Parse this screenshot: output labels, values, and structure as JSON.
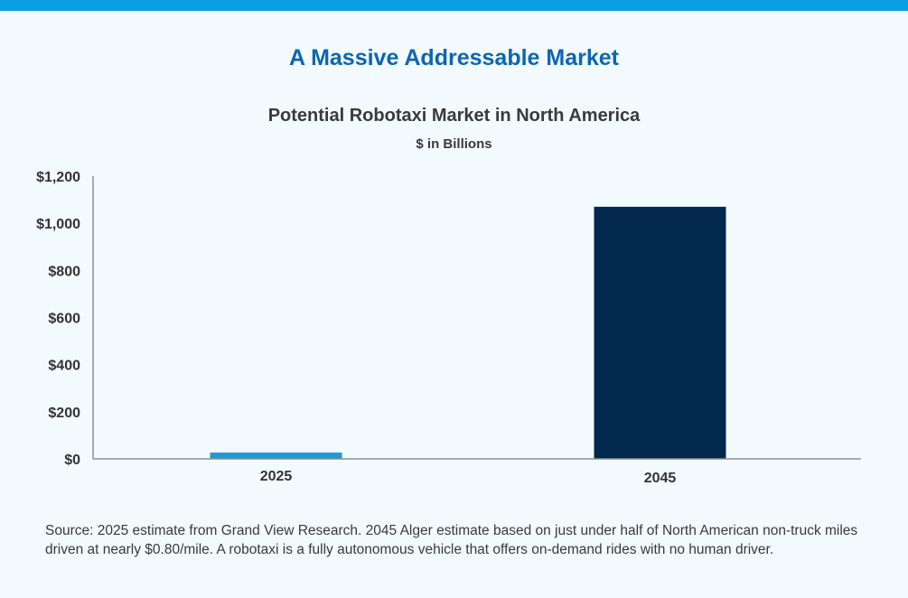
{
  "header": {
    "headline": "A Massive Addressable Market"
  },
  "chart_data": {
    "type": "bar",
    "title": "Potential Robotaxi Market in North America",
    "subtitle": "$ in Billions",
    "categories": [
      "2025",
      "2045"
    ],
    "values": [
      27,
      1070
    ],
    "ylim": [
      0,
      1200
    ],
    "yticks": [
      0,
      200,
      400,
      600,
      800,
      1000,
      1200
    ],
    "ytick_labels": [
      "$0",
      "$200",
      "$400",
      "$600",
      "$800",
      "$1,000",
      "$1,200"
    ],
    "bar_colors": [
      "#1e9ad8",
      "#03284e"
    ],
    "axis_color": "#8a9196",
    "grid": false,
    "legend": "none"
  },
  "footer": {
    "source": "Source: 2025 estimate from Grand View Research. 2045 Alger estimate based on just under half of North American non-truck miles driven at nearly $0.80/mile. A robotaxi is a fully autonomous vehicle that offers on-demand rides with no human driver."
  },
  "colors": {
    "top_bar": "#0a9ee0",
    "headline": "#0b66b2",
    "background": "#f2fafd"
  }
}
